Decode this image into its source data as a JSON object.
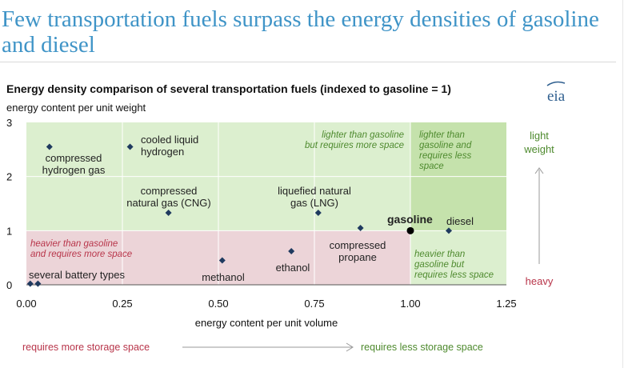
{
  "headline": "Few transportation fuels surpass the energy densities of gasoline and diesel",
  "colors": {
    "headline": "#3f94c7",
    "light_green": "#dcefcf",
    "dark_green": "#c5e2ac",
    "red_zone": "#ecd4d8",
    "grid_white": "#ffffff",
    "marker": "#1f3a5f",
    "region_text_green": "#4e8a2e",
    "region_text_red": "#b8354a",
    "eia_blue": "#2f5f8f"
  },
  "chart_data": {
    "type": "scatter",
    "title": "Energy density comparison of several transportation fuels (indexed to gasoline = 1)",
    "logo": "eia",
    "ylabel": "energy content per unit weight",
    "xlabel": "energy content per unit volume",
    "xlim": [
      0,
      1.25
    ],
    "ylim": [
      0,
      3
    ],
    "x_ticks": [
      "0.00",
      "0.25",
      "0.50",
      "0.75",
      "1.00",
      "1.25"
    ],
    "y_ticks": [
      "0",
      "1",
      "2",
      "3"
    ],
    "points": [
      {
        "label": "compressed hydrogen gas",
        "x": 0.06,
        "y": 2.55
      },
      {
        "label": "cooled liquid hydrogen",
        "x": 0.27,
        "y": 2.55
      },
      {
        "label": "compressed natural gas (CNG)",
        "x": 0.37,
        "y": 1.33
      },
      {
        "label": "liquefied natural gas (LNG)",
        "x": 0.76,
        "y": 1.33
      },
      {
        "label": "compressed propane",
        "x": 0.87,
        "y": 1.05
      },
      {
        "label": "ethanol",
        "x": 0.69,
        "y": 0.62
      },
      {
        "label": "methanol",
        "x": 0.51,
        "y": 0.45
      },
      {
        "label": "several battery types",
        "x": 0.01,
        "y": 0.02
      },
      {
        "label": "several battery types",
        "x": 0.03,
        "y": 0.02
      },
      {
        "label": "gasoline",
        "x": 1.0,
        "y": 1.0,
        "highlight": true
      },
      {
        "label": "diesel",
        "x": 1.1,
        "y": 1.0
      }
    ],
    "regions": [
      {
        "name": "upper-left",
        "text": [
          "lighter than gasoline",
          "but requires more space"
        ]
      },
      {
        "name": "upper-right",
        "text": [
          "lighter than",
          "gasoline and",
          "requires less",
          "space"
        ]
      },
      {
        "name": "lower-left",
        "text": [
          "heavier than gasoline",
          "and requires more space"
        ]
      },
      {
        "name": "lower-right",
        "text": [
          "heavier than",
          "gasoline but",
          "requires less space"
        ]
      }
    ],
    "side_labels": {
      "top": [
        "light",
        "weight"
      ],
      "bottom": "heavy"
    },
    "bottom_arrow": {
      "left": "requires more storage space",
      "right": "requires less storage space"
    }
  }
}
